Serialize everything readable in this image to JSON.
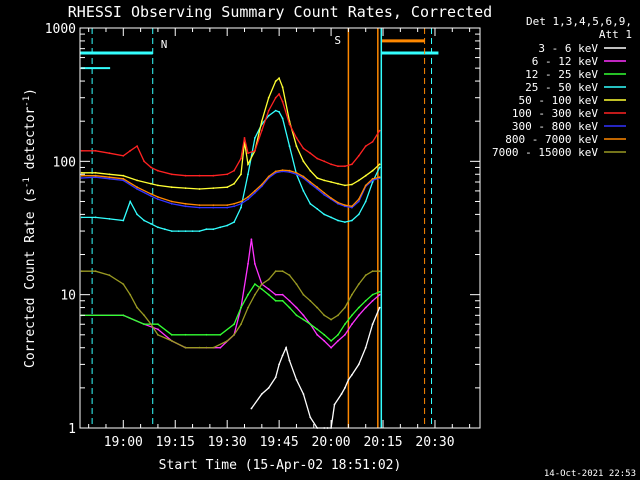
{
  "chart_data": {
    "type": "line",
    "title": "RHESSI Observing Summary Count Rates, Corrected",
    "xlabel": "Start Time (15-Apr-02 18:51:02)",
    "ylabel_main": "Corrected Count Rate (s",
    "ylabel_sup1": "-1",
    "ylabel_mid": " detector",
    "ylabel_sup2": "-1",
    "ylabel_end": ")",
    "yscale": "log",
    "ylim": [
      1,
      1000
    ],
    "xlim_minutes": [
      -12.5,
      103
    ],
    "x_ticks": [
      {
        "m": 0,
        "label": "19:00"
      },
      {
        "m": 15,
        "label": "19:15"
      },
      {
        "m": 30,
        "label": "19:30"
      },
      {
        "m": 45,
        "label": "19:45"
      },
      {
        "m": 60,
        "label": "20:00"
      },
      {
        "m": 75,
        "label": "20:15"
      },
      {
        "m": 90,
        "label": "20:30"
      }
    ],
    "y_ticks": [
      {
        "v": 1,
        "label": "1"
      },
      {
        "v": 10,
        "label": "10"
      },
      {
        "v": 100,
        "label": "100"
      },
      {
        "v": 1000,
        "label": "1000"
      }
    ],
    "legend_header": [
      "Det 1,3,4,5,6,9,",
      "Att 1"
    ],
    "series": [
      {
        "name": "3 - 6 keV",
        "color": "#ffffff",
        "x": [
          37,
          40,
          42,
          44,
          45,
          46,
          47,
          48,
          50,
          52,
          54,
          56,
          58,
          59,
          60,
          61,
          63,
          64,
          65,
          66,
          68,
          70,
          72,
          74
        ],
        "y": [
          1.4,
          1.8,
          2.0,
          2.4,
          3.0,
          3.5,
          4.0,
          3.2,
          2.3,
          1.8,
          1.2,
          1.0,
          1.0,
          1.0,
          1.0,
          1.5,
          1.8,
          2.0,
          2.3,
          2.5,
          3.0,
          4.0,
          6.0,
          8.0
        ]
      },
      {
        "name": "6 - 12 keV",
        "color": "#ff33ff",
        "x": [
          -12,
          0,
          6,
          10,
          14,
          18,
          24,
          28,
          32,
          34,
          36,
          37,
          38,
          40,
          42,
          44,
          46,
          48,
          50,
          52,
          54,
          56,
          58,
          60,
          62,
          64,
          66,
          68,
          70,
          72,
          74
        ],
        "y": [
          7,
          7,
          6,
          5.5,
          4.5,
          4,
          4,
          4,
          5,
          8,
          17,
          26,
          17,
          12,
          11,
          10,
          10,
          9,
          8,
          7,
          6,
          5,
          4.5,
          4,
          4.5,
          5,
          6,
          7,
          8,
          9,
          10
        ]
      },
      {
        "name": "12 - 25 keV",
        "color": "#33ff33",
        "x": [
          -12,
          0,
          6,
          10,
          14,
          18,
          24,
          28,
          32,
          34,
          36,
          38,
          40,
          42,
          44,
          46,
          48,
          50,
          52,
          54,
          56,
          58,
          60,
          62,
          64,
          66,
          68,
          70,
          72,
          74
        ],
        "y": [
          7,
          7,
          6,
          6,
          5,
          5,
          5,
          5,
          6,
          8,
          10,
          12,
          11,
          10,
          9,
          9,
          8,
          7,
          6.5,
          6,
          5.5,
          5,
          4.5,
          5,
          6,
          7,
          8,
          9,
          10,
          10.5
        ]
      },
      {
        "name": "25 - 50 keV",
        "color": "#33ffff",
        "x": [
          -12,
          -8,
          -4,
          0,
          2,
          4,
          6,
          8,
          10,
          12,
          14,
          16,
          18,
          20,
          22,
          24,
          26,
          28,
          30,
          32,
          34,
          36,
          38,
          40,
          42,
          44,
          45,
          46,
          48,
          50,
          52,
          54,
          56,
          58,
          60,
          62,
          64,
          66,
          68,
          70,
          72,
          74
        ],
        "y": [
          38,
          38,
          37,
          36,
          50,
          40,
          36,
          34,
          32,
          31,
          30,
          30,
          30,
          30,
          30,
          31,
          31,
          32,
          33,
          35,
          45,
          80,
          150,
          190,
          220,
          240,
          235,
          210,
          130,
          80,
          60,
          48,
          44,
          40,
          38,
          36,
          35,
          36,
          40,
          50,
          70,
          90
        ]
      },
      {
        "name": "50 - 100 keV",
        "color": "#ffff33",
        "x": [
          -12,
          -8,
          -4,
          0,
          4,
          8,
          10,
          14,
          18,
          22,
          26,
          30,
          32,
          34,
          35,
          36,
          38,
          40,
          42,
          44,
          45,
          46,
          48,
          50,
          52,
          54,
          56,
          58,
          60,
          62,
          64,
          66,
          68,
          70,
          72,
          74
        ],
        "y": [
          82,
          82,
          80,
          78,
          72,
          68,
          66,
          64,
          63,
          62,
          63,
          64,
          68,
          80,
          140,
          95,
          120,
          200,
          300,
          400,
          420,
          360,
          200,
          130,
          100,
          85,
          75,
          72,
          70,
          68,
          66,
          67,
          72,
          78,
          85,
          95
        ]
      },
      {
        "name": "100 - 300 keV",
        "color": "#ff2222",
        "x": [
          -12,
          -8,
          -4,
          0,
          2,
          4,
          6,
          8,
          10,
          14,
          18,
          22,
          26,
          30,
          32,
          34,
          35,
          36,
          38,
          40,
          42,
          44,
          45,
          46,
          48,
          50,
          52,
          54,
          56,
          58,
          60,
          62,
          64,
          66,
          68,
          70,
          72,
          74
        ],
        "y": [
          120,
          120,
          115,
          110,
          120,
          130,
          100,
          90,
          85,
          80,
          78,
          78,
          78,
          80,
          85,
          105,
          150,
          115,
          120,
          170,
          240,
          300,
          320,
          280,
          190,
          150,
          125,
          115,
          105,
          100,
          95,
          92,
          92,
          95,
          110,
          130,
          140,
          170
        ]
      },
      {
        "name": "300 - 800 keV",
        "color": "#3333ff",
        "x": [
          -12,
          -8,
          -4,
          0,
          4,
          8,
          10,
          14,
          18,
          22,
          26,
          30,
          32,
          34,
          36,
          38,
          40,
          42,
          44,
          46,
          48,
          50,
          52,
          54,
          56,
          58,
          60,
          62,
          64,
          66,
          68,
          70,
          72,
          74
        ],
        "y": [
          75,
          76,
          74,
          72,
          62,
          55,
          52,
          48,
          46,
          45,
          45,
          45,
          46,
          48,
          52,
          58,
          65,
          75,
          82,
          84,
          83,
          80,
          75,
          68,
          62,
          56,
          52,
          48,
          46,
          45,
          50,
          65,
          72,
          75
        ]
      },
      {
        "name": "800 - 7000 keV",
        "color": "#ff8800",
        "x": [
          -12,
          -8,
          -4,
          0,
          4,
          8,
          10,
          14,
          18,
          22,
          26,
          30,
          32,
          34,
          36,
          38,
          40,
          42,
          44,
          46,
          48,
          50,
          52,
          54,
          56,
          58,
          60,
          62,
          64,
          66,
          68,
          70,
          72,
          74
        ],
        "y": [
          78,
          78,
          76,
          74,
          64,
          57,
          54,
          50,
          48,
          47,
          47,
          47,
          48,
          50,
          54,
          60,
          67,
          77,
          84,
          86,
          85,
          82,
          77,
          70,
          64,
          58,
          53,
          49,
          47,
          46,
          52,
          66,
          74,
          76
        ]
      },
      {
        "name": "7000 - 15000 keV",
        "color": "#999922",
        "x": [
          -12,
          -8,
          -4,
          0,
          2,
          4,
          6,
          8,
          10,
          14,
          18,
          22,
          26,
          30,
          32,
          34,
          36,
          38,
          40,
          42,
          44,
          46,
          48,
          50,
          52,
          54,
          56,
          58,
          60,
          62,
          64,
          66,
          68,
          70,
          72,
          74
        ],
        "y": [
          15,
          15,
          14,
          12,
          10,
          8,
          7,
          6,
          5,
          4.5,
          4,
          4,
          4,
          4.5,
          5,
          6,
          8,
          10,
          12,
          13,
          15,
          15,
          14,
          12,
          10,
          9,
          8,
          7,
          6.5,
          7,
          8,
          10,
          12,
          14,
          15,
          15
        ]
      }
    ],
    "annotations": {
      "n_label": "N",
      "s_label": "S",
      "night_lines_m": [
        -9,
        8.5
      ],
      "saa_vlines_m": [
        65,
        73.5
      ],
      "saa_dashed_m": [
        87
      ],
      "cyan_vlines_m": [
        74.5
      ],
      "cyan_dashed_m": [
        89
      ],
      "cyan_bar_start_m": -12.5,
      "cyan_bar_end_m": 8.5,
      "cyan_bar2_start_m": 74.5,
      "cyan_bar2_end_m": 91,
      "orange_bar_start_m": 74.5,
      "orange_bar_end_m": 87
    }
  },
  "footer": {
    "date_stamp": "14-Oct-2021 22:53"
  }
}
